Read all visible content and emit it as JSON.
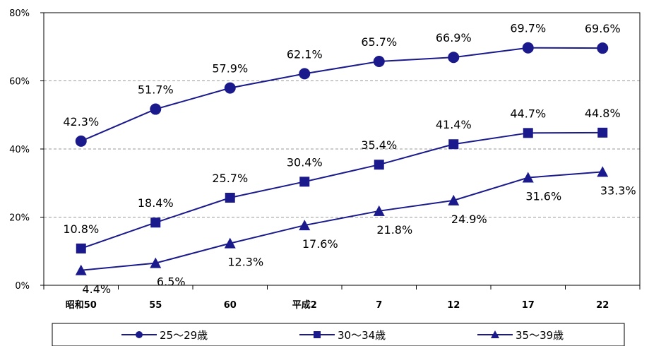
{
  "chart_data": {
    "type": "line",
    "categories": [
      "昭和50",
      "55",
      "60",
      "平成2",
      "7",
      "12",
      "17",
      "22"
    ],
    "ylim": [
      0,
      80
    ],
    "yticks": [
      "0%",
      "20%",
      "40%",
      "60%",
      "80%"
    ],
    "grid": "horizontal-dashed",
    "legend_position": "bottom",
    "series": [
      {
        "name": "25～29歳",
        "marker": "circle",
        "values": [
          42.3,
          51.7,
          57.9,
          62.1,
          65.7,
          66.9,
          69.7,
          69.6
        ],
        "labels": [
          "42.3%",
          "51.7%",
          "57.9%",
          "62.1%",
          "65.7%",
          "66.9%",
          "69.7%",
          "69.6%"
        ],
        "label_position": "above"
      },
      {
        "name": "30～34歳",
        "marker": "square",
        "values": [
          10.8,
          18.4,
          25.7,
          30.4,
          35.4,
          41.4,
          44.7,
          44.8
        ],
        "labels": [
          "10.8%",
          "18.4%",
          "25.7%",
          "30.4%",
          "35.4%",
          "41.4%",
          "44.7%",
          "44.8%"
        ],
        "label_position": "above"
      },
      {
        "name": "35～39歳",
        "marker": "triangle",
        "values": [
          4.4,
          6.5,
          12.3,
          17.6,
          21.8,
          24.9,
          31.6,
          33.3
        ],
        "labels": [
          "4.4%",
          "6.5%",
          "12.3%",
          "17.6%",
          "21.8%",
          "24.9%",
          "31.6%",
          "33.3%"
        ],
        "label_position": "below"
      }
    ],
    "colors": {
      "series": "#1a1a8c",
      "grid": "#999999",
      "axis": "#000000"
    }
  }
}
